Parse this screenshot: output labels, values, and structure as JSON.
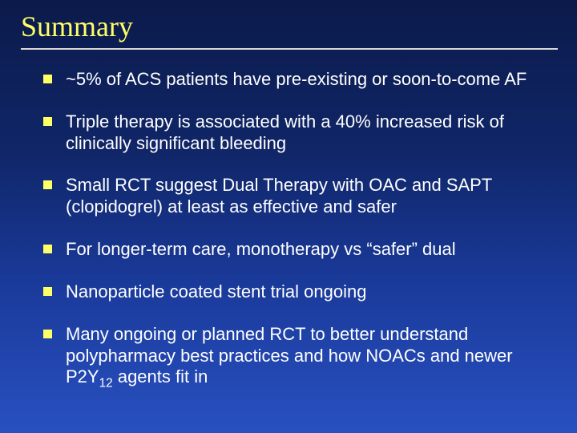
{
  "slide": {
    "title": "Summary",
    "bullets": [
      "~5% of ACS patients have pre-existing or soon-to-come AF",
      "Triple therapy is associated with a 40% increased risk of clinically significant bleeding",
      "Small RCT suggest Dual Therapy with OAC and SAPT (clopidogrel) at least as effective and safer",
      "For longer-term care, monotherapy vs \"safer\" dual",
      "Nanoparticle coated stent trial ongoing",
      "Many ongoing or planned RCT to better understand polypharmacy best practices and how NOACs and newer P2Y12 agents fit in"
    ],
    "colors": {
      "title_color": "#ffff66",
      "bullet_color": "#ffff66",
      "text_color": "#ffffff",
      "rule_color": "#d9d9d9",
      "bg_top": "#0b1a4a",
      "bg_bottom": "#2850c0"
    },
    "typography": {
      "title_font": "Times New Roman",
      "body_font": "Arial",
      "title_size_pt": 36,
      "body_size_pt": 22
    }
  }
}
